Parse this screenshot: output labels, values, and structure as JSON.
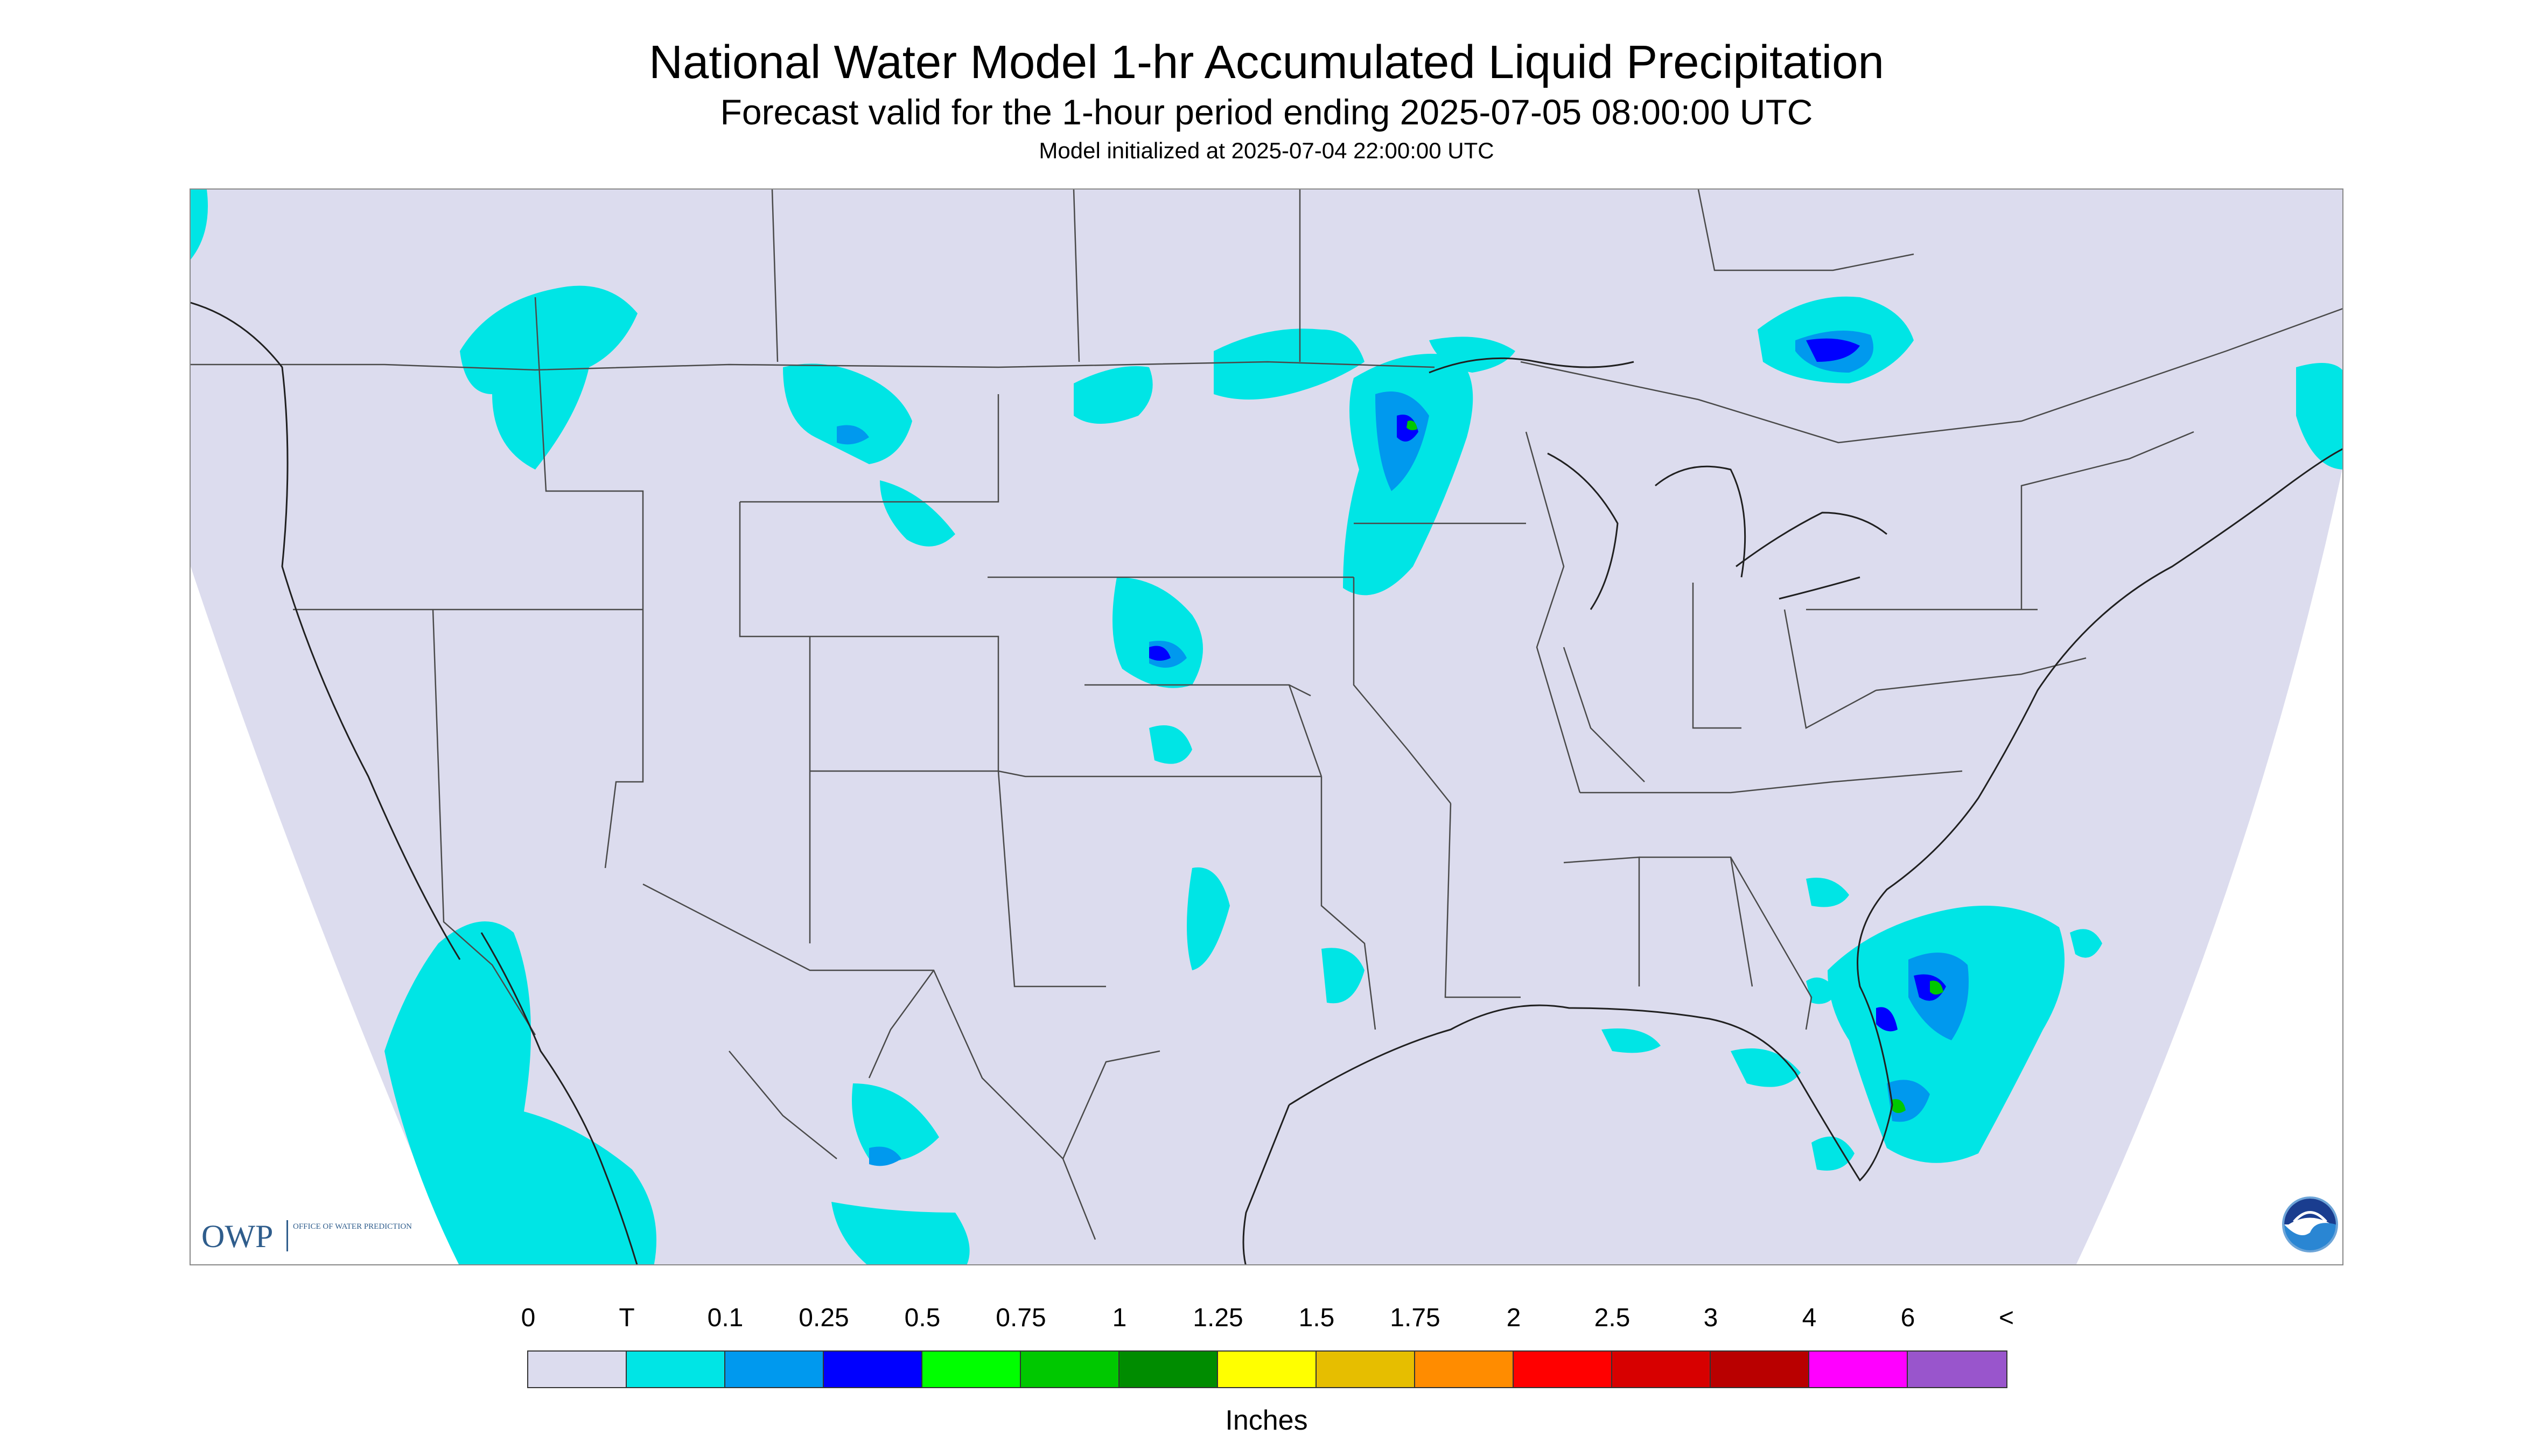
{
  "title": "National Water Model 1-hr Accumulated Liquid Precipitation",
  "subtitle": "Forecast valid for the 1-hour period ending 2025-07-05 08:00:00 UTC",
  "initialized": "Model initialized at 2025-07-04 22:00:00 UTC",
  "colors": {
    "background": "#dcdcee",
    "outside_domain": "#ffffff",
    "border_lines": "#4a4a4a",
    "trace": "#00e5e5",
    "light_blue": "#0099ee",
    "blue": "#0000ff",
    "green": "#00c800"
  },
  "logos": {
    "owp_mark": "OWP",
    "owp_text": "OFFICE OF WATER PREDICTION",
    "noaa_icon": "noaa-logo-icon"
  },
  "legend": {
    "labels": [
      "0",
      "T",
      "0.1",
      "0.25",
      "0.5",
      "0.75",
      "1",
      "1.25",
      "1.5",
      "1.75",
      "2",
      "2.5",
      "3",
      "4",
      "6",
      "<"
    ],
    "colors": [
      "#dcdcee",
      "#00e5e5",
      "#0099ee",
      "#0000ff",
      "#00ff00",
      "#00c800",
      "#008c00",
      "#ffff00",
      "#e6be00",
      "#ff8c00",
      "#ff0000",
      "#d70000",
      "#b90000",
      "#ff00ff",
      "#9955cc"
    ],
    "units": "Inches"
  }
}
